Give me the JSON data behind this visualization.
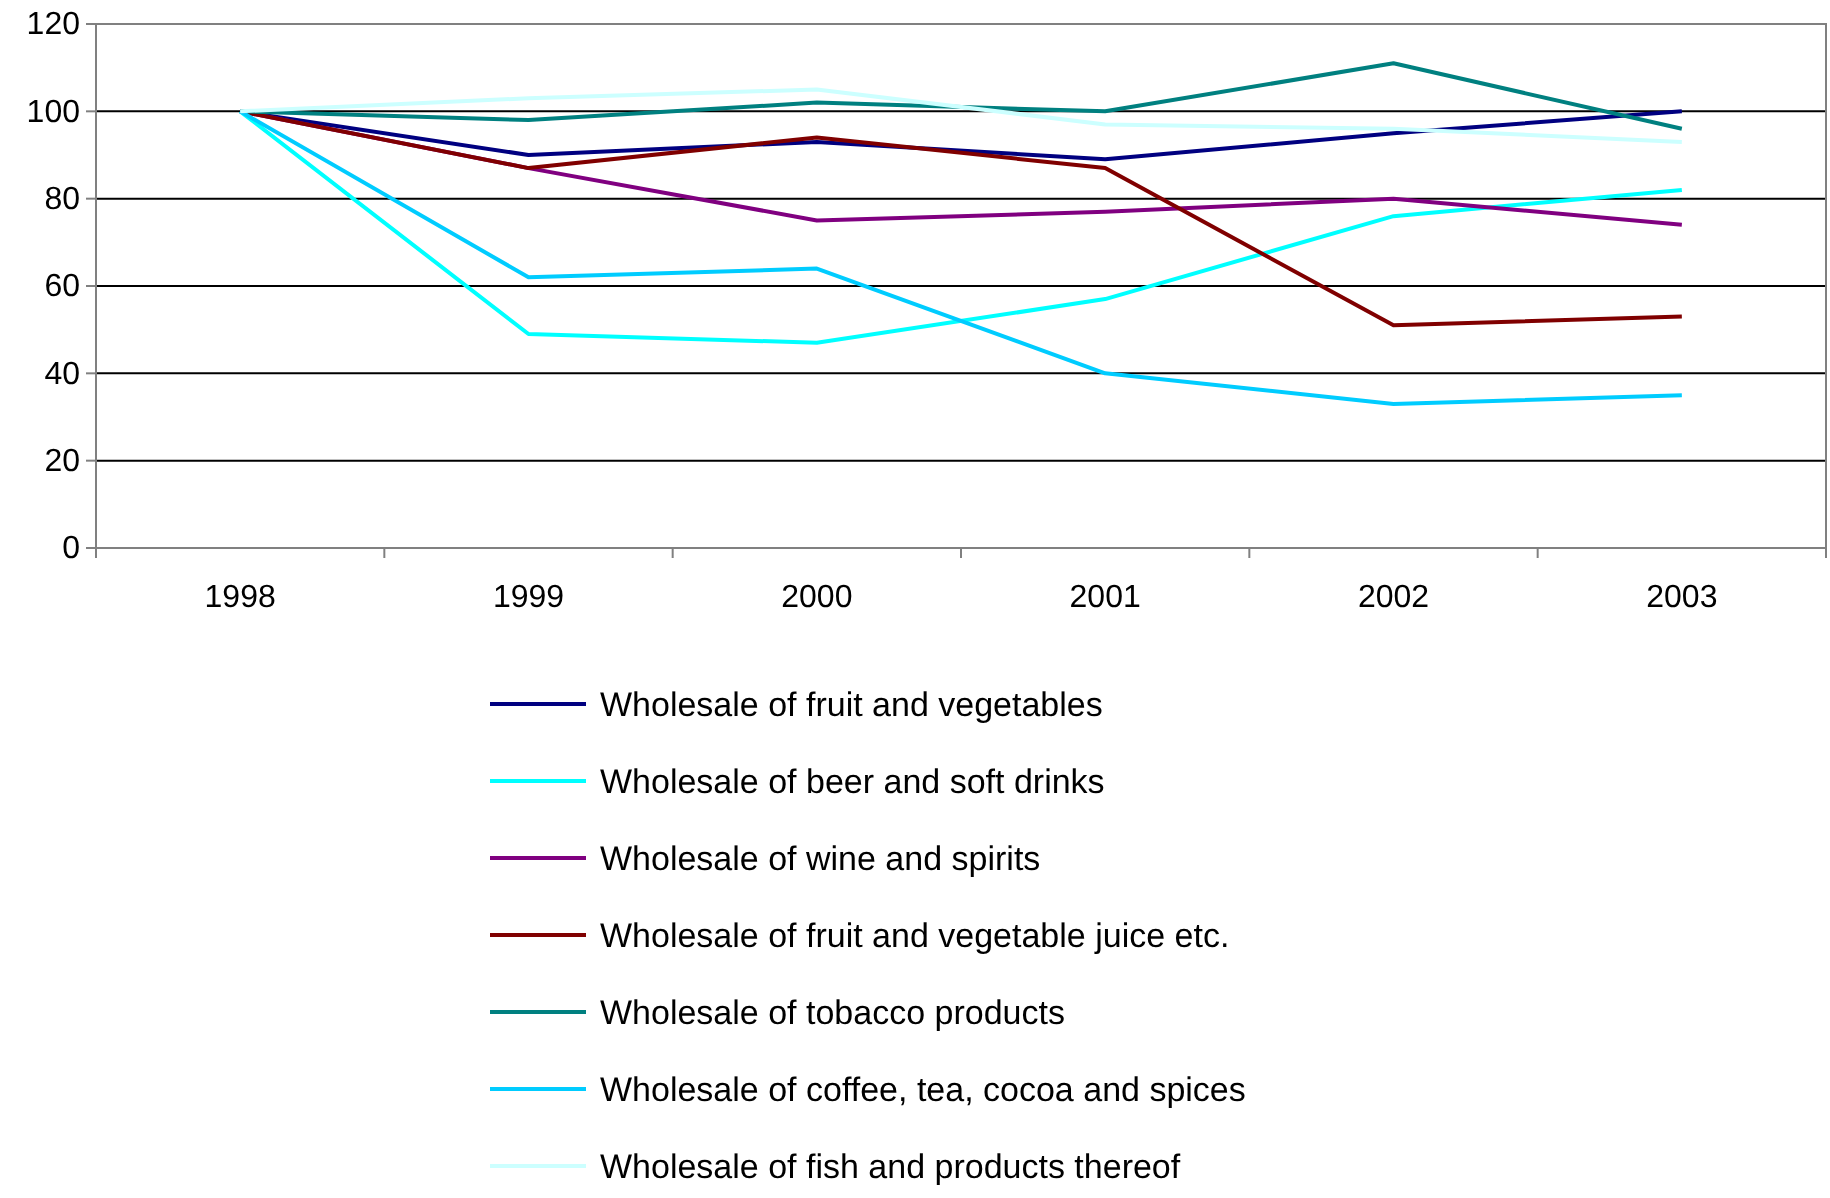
{
  "chart_data": {
    "type": "line",
    "categories": [
      "1998",
      "1999",
      "2000",
      "2001",
      "2002",
      "2003"
    ],
    "ylim": [
      0,
      120
    ],
    "yticks": [
      0,
      20,
      40,
      60,
      80,
      100,
      120
    ],
    "grid": "y",
    "legend": "bottom",
    "marker": "none",
    "line_style": "solid",
    "series": [
      {
        "name": "Wholesale of fruit and vegetables",
        "color": "#000080",
        "values": [
          100,
          90,
          93,
          89,
          95,
          100
        ]
      },
      {
        "name": "Wholesale of beer and soft drinks",
        "color": "#00ffff",
        "values": [
          100,
          49,
          47,
          57,
          76,
          82
        ]
      },
      {
        "name": "Wholesale of wine and spirits",
        "color": "#800080",
        "values": [
          100,
          87,
          75,
          77,
          80,
          74
        ]
      },
      {
        "name": "Wholesale of fruit and vegetable juice etc.",
        "color": "#800000",
        "values": [
          100,
          87,
          94,
          87,
          51,
          53
        ]
      },
      {
        "name": "Wholesale of tobacco products",
        "color": "#008080",
        "values": [
          100,
          98,
          102,
          100,
          111,
          96
        ]
      },
      {
        "name": "Wholesale of coffee, tea, cocoa and spices",
        "color": "#00ccff",
        "values": [
          100,
          62,
          64,
          40,
          33,
          35
        ]
      },
      {
        "name": "Wholesale of fish and products thereof",
        "color": "#ccffff",
        "values": [
          100,
          103,
          105,
          97,
          96,
          93
        ]
      }
    ]
  }
}
